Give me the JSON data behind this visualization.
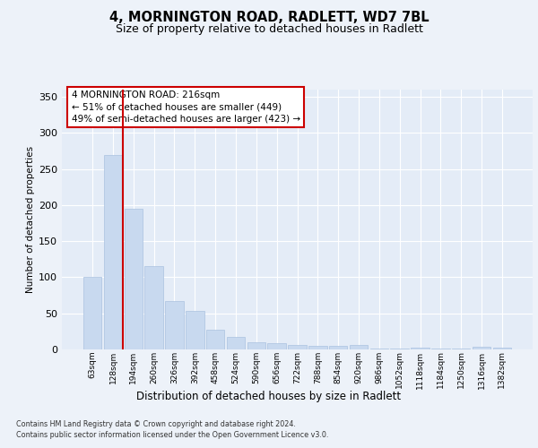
{
  "title1": "4, MORNINGTON ROAD, RADLETT, WD7 7BL",
  "title2": "Size of property relative to detached houses in Radlett",
  "xlabel": "Distribution of detached houses by size in Radlett",
  "ylabel": "Number of detached properties",
  "bar_color": "#c8d9ef",
  "bar_edgecolor": "#aac2e0",
  "vline_color": "#cc0000",
  "vline_x_index": 1.5,
  "annotation_title": "4 MORNINGTON ROAD: 216sqm",
  "annotation_line1": "← 51% of detached houses are smaller (449)",
  "annotation_line2": "49% of semi-detached houses are larger (423) →",
  "categories": [
    "63sqm",
    "128sqm",
    "194sqm",
    "260sqm",
    "326sqm",
    "392sqm",
    "458sqm",
    "524sqm",
    "590sqm",
    "656sqm",
    "722sqm",
    "788sqm",
    "854sqm",
    "920sqm",
    "986sqm",
    "1052sqm",
    "1118sqm",
    "1184sqm",
    "1250sqm",
    "1316sqm",
    "1382sqm"
  ],
  "values": [
    100,
    270,
    195,
    115,
    67,
    53,
    27,
    17,
    10,
    9,
    6,
    5,
    5,
    6,
    1,
    1,
    3,
    1,
    1,
    4,
    2
  ],
  "ylim": [
    0,
    360
  ],
  "yticks": [
    0,
    50,
    100,
    150,
    200,
    250,
    300,
    350
  ],
  "footer1": "Contains HM Land Registry data © Crown copyright and database right 2024.",
  "footer2": "Contains public sector information licensed under the Open Government Licence v3.0.",
  "fig_facecolor": "#edf2f9",
  "axes_facecolor": "#e4ecf7",
  "grid_color": "#ffffff"
}
